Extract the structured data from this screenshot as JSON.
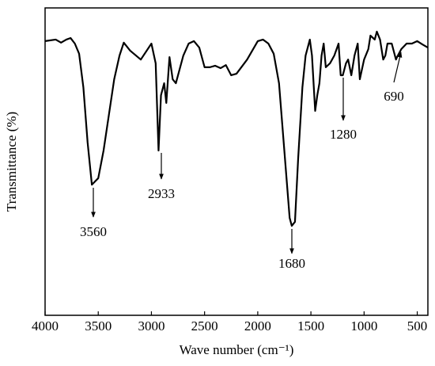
{
  "chart_data": {
    "type": "line",
    "xlabel": "Wave number (cm⁻¹)",
    "ylabel": "Transmittance (%)",
    "xlim": [
      4000,
      400
    ],
    "xticks": [
      4000,
      3500,
      3000,
      2500,
      2000,
      1500,
      1000,
      500
    ],
    "ylim": [
      0,
      100
    ],
    "series": [
      {
        "color": "#000000",
        "x": [
          4000,
          3900,
          3850,
          3800,
          3760,
          3720,
          3680,
          3640,
          3600,
          3560,
          3500,
          3450,
          3400,
          3350,
          3300,
          3260,
          3200,
          3100,
          3000,
          2960,
          2933,
          2910,
          2880,
          2860,
          2830,
          2800,
          2770,
          2700,
          2650,
          2600,
          2550,
          2500,
          2450,
          2400,
          2350,
          2300,
          2250,
          2200,
          2100,
          2000,
          1950,
          1900,
          1850,
          1800,
          1750,
          1700,
          1680,
          1650,
          1620,
          1580,
          1550,
          1510,
          1490,
          1460,
          1440,
          1420,
          1400,
          1380,
          1360,
          1320,
          1280,
          1240,
          1220,
          1200,
          1170,
          1150,
          1120,
          1090,
          1060,
          1040,
          1000,
          960,
          940,
          900,
          880,
          850,
          820,
          800,
          780,
          740,
          700,
          690,
          650,
          600,
          550,
          500,
          450,
          400
        ],
        "values": [
          89.2,
          89.7,
          88.7,
          89.7,
          90.2,
          88.4,
          85.1,
          74.2,
          56.2,
          42.5,
          44.6,
          53.6,
          65.2,
          76.8,
          84.5,
          88.7,
          86.1,
          83.2,
          88.4,
          82.0,
          53.6,
          71.6,
          75.5,
          69.1,
          84.0,
          76.8,
          75.5,
          84.5,
          88.4,
          89.2,
          87.1,
          80.7,
          80.7,
          81.2,
          80.4,
          81.4,
          78.1,
          78.6,
          83.2,
          89.2,
          89.7,
          88.4,
          85.1,
          75.5,
          53.6,
          31.7,
          29.1,
          30.4,
          51.0,
          74.2,
          84.5,
          89.7,
          84.5,
          66.5,
          71.6,
          75.5,
          84.5,
          88.4,
          80.7,
          82.0,
          84.5,
          88.4,
          78.1,
          78.1,
          82.0,
          83.2,
          78.1,
          84.5,
          88.4,
          76.8,
          83.2,
          86.6,
          91.0,
          89.7,
          92.3,
          89.7,
          83.2,
          84.5,
          88.4,
          88.4,
          83.2,
          84.0,
          86.6,
          88.4,
          88.4,
          89.2,
          88.1,
          87.1
        ]
      }
    ],
    "annotations": [
      {
        "text": "3560"
      },
      {
        "text": "2933"
      },
      {
        "text": "1680"
      },
      {
        "text": "1280"
      },
      {
        "text": "690"
      }
    ]
  }
}
